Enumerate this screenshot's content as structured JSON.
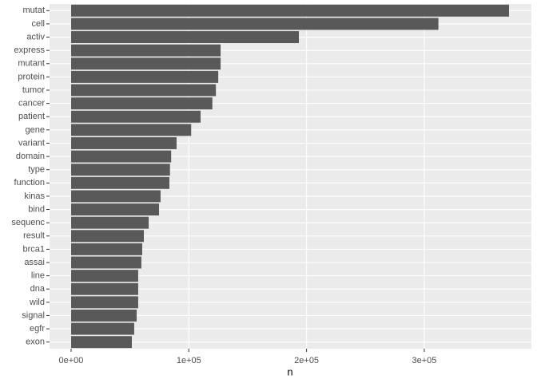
{
  "chart_data": {
    "type": "bar",
    "orientation": "horizontal",
    "x_label": "n",
    "categories": [
      "mutat",
      "cell",
      "activ",
      "express",
      "mutant",
      "protein",
      "tumor",
      "cancer",
      "patient",
      "gene",
      "variant",
      "domain",
      "type",
      "function",
      "kinas",
      "bind",
      "sequenc",
      "result",
      "brca1",
      "assai",
      "line",
      "dna",
      "wild",
      "signal",
      "egfr",
      "exon"
    ],
    "values": [
      372000,
      312000,
      193500,
      127000,
      127000,
      125000,
      123000,
      120000,
      110000,
      102000,
      89600,
      85000,
      84000,
      83500,
      76000,
      74700,
      65900,
      61800,
      60400,
      59700,
      57000,
      57000,
      57000,
      55700,
      53600,
      51600
    ],
    "color": "#595959",
    "xlim": [
      -18300,
      391000
    ],
    "xticks": [
      {
        "value": 0,
        "label": "0e+00"
      },
      {
        "value": 100000,
        "label": "1e+05"
      },
      {
        "value": 200000,
        "label": "2e+05"
      },
      {
        "value": 300000,
        "label": "3e+05"
      }
    ],
    "grid": true
  }
}
